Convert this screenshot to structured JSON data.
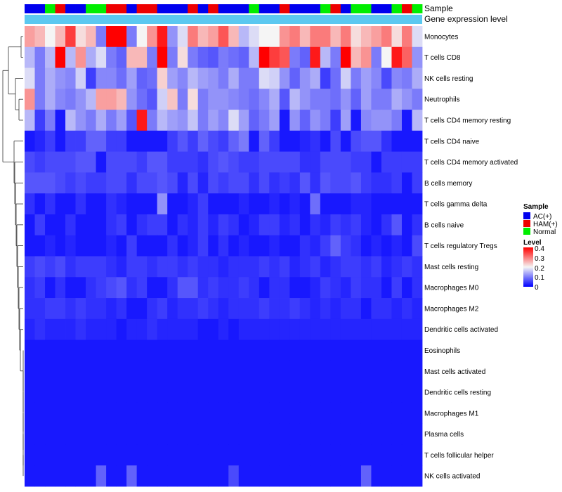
{
  "chart_data": {
    "type": "heatmap",
    "row_labels": [
      "Monocytes",
      "T cells CD8",
      "NK cells resting",
      "Neutrophils",
      "T cells CD4 memory resting",
      "T cells CD4 naive",
      "T cells CD4 memory activated",
      "B cells memory",
      "T cells gamma delta",
      "B cells naive",
      "T cells regulatory  Tregs",
      "Mast cells resting",
      "Macrophages M0",
      "Macrophages M2",
      "Dendritic cells activated",
      "Eosinophils",
      "Mast cells activated",
      "Dendritic cells resting",
      "Macrophages M1",
      "Plasma cells",
      "T cells follicular helper",
      "NK cells activated"
    ],
    "annotation_tracks": [
      {
        "name": "Sample",
        "values": [
          "AC(+)",
          "AC(+)",
          "Normal",
          "HAM(+)",
          "AC(+)",
          "AC(+)",
          "Normal",
          "Normal",
          "HAM(+)",
          "HAM(+)",
          "AC(+)",
          "HAM(+)",
          "HAM(+)",
          "AC(+)",
          "AC(+)",
          "AC(+)",
          "HAM(+)",
          "AC(+)",
          "HAM(+)",
          "AC(+)",
          "AC(+)",
          "AC(+)",
          "Normal",
          "AC(+)",
          "AC(+)",
          "HAM(+)",
          "AC(+)",
          "AC(+)",
          "AC(+)",
          "Normal",
          "HAM(+)",
          "AC(+)",
          "Normal",
          "Normal",
          "AC(+)",
          "AC(+)",
          "Normal",
          "HAM(+)",
          "Normal"
        ]
      },
      {
        "name": "Gene expression level",
        "color": "#5BC8F0"
      }
    ],
    "values": [
      [
        0.27,
        0.25,
        0.2,
        0.25,
        0.35,
        0.22,
        0.25,
        0.1,
        0.4,
        0.4,
        0.1,
        0.2,
        0.28,
        0.38,
        0.12,
        0.18,
        0.3,
        0.25,
        0.27,
        0.33,
        0.25,
        0.15,
        0.18,
        0.2,
        0.2,
        0.28,
        0.3,
        0.25,
        0.3,
        0.3,
        0.25,
        0.3,
        0.22,
        0.25,
        0.27,
        0.3,
        0.22,
        0.3,
        0.18
      ],
      [
        0.15,
        0.1,
        0.15,
        0.4,
        0.15,
        0.28,
        0.14,
        0.18,
        0.1,
        0.08,
        0.25,
        0.25,
        0.1,
        0.4,
        0.1,
        0.22,
        0.1,
        0.08,
        0.07,
        0.1,
        0.09,
        0.08,
        0.15,
        0.4,
        0.35,
        0.33,
        0.1,
        0.08,
        0.38,
        0.15,
        0.1,
        0.4,
        0.25,
        0.28,
        0.1,
        0.2,
        0.38,
        0.32,
        0.12
      ],
      [
        0.18,
        0.1,
        0.14,
        0.12,
        0.11,
        0.17,
        0.05,
        0.11,
        0.11,
        0.09,
        0.13,
        0.08,
        0.09,
        0.23,
        0.13,
        0.11,
        0.15,
        0.13,
        0.12,
        0.1,
        0.14,
        0.1,
        0.1,
        0.18,
        0.17,
        0.12,
        0.08,
        0.12,
        0.14,
        0.05,
        0.09,
        0.17,
        0.1,
        0.13,
        0.11,
        0.06,
        0.11,
        0.1,
        0.14
      ],
      [
        0.28,
        0.1,
        0.14,
        0.11,
        0.1,
        0.12,
        0.15,
        0.27,
        0.27,
        0.25,
        0.12,
        0.09,
        0.07,
        0.17,
        0.24,
        0.1,
        0.22,
        0.1,
        0.12,
        0.12,
        0.11,
        0.1,
        0.09,
        0.11,
        0.14,
        0.07,
        0.15,
        0.12,
        0.1,
        0.1,
        0.09,
        0.12,
        0.08,
        0.13,
        0.1,
        0.1,
        0.14,
        0.12,
        0.1
      ],
      [
        0.15,
        0.05,
        0.1,
        0.02,
        0.15,
        0.12,
        0.1,
        0.14,
        0.1,
        0.13,
        0.07,
        0.38,
        0.1,
        0.15,
        0.13,
        0.12,
        0.16,
        0.1,
        0.13,
        0.11,
        0.18,
        0.13,
        0.08,
        0.1,
        0.13,
        0.02,
        0.12,
        0.08,
        0.12,
        0.1,
        0.05,
        0.13,
        0.02,
        0.11,
        0.12,
        0.12,
        0.1,
        0.02,
        0.15
      ],
      [
        0.02,
        0.03,
        0.05,
        0.02,
        0.05,
        0.05,
        0.08,
        0.08,
        0.05,
        0.05,
        0.02,
        0.02,
        0.02,
        0.02,
        0.05,
        0.07,
        0.05,
        0.08,
        0.06,
        0.05,
        0.08,
        0.1,
        0.02,
        0.08,
        0.05,
        0.02,
        0.02,
        0.03,
        0.04,
        0.02,
        0.06,
        0.02,
        0.06,
        0.07,
        0.07,
        0.04,
        0.02,
        0.02,
        0.02
      ],
      [
        0.06,
        0.05,
        0.06,
        0.06,
        0.06,
        0.07,
        0.07,
        0.02,
        0.06,
        0.06,
        0.06,
        0.05,
        0.07,
        0.07,
        0.05,
        0.05,
        0.05,
        0.04,
        0.06,
        0.07,
        0.06,
        0.05,
        0.05,
        0.06,
        0.06,
        0.06,
        0.06,
        0.04,
        0.04,
        0.06,
        0.06,
        0.06,
        0.05,
        0.05,
        0.02,
        0.05,
        0.05,
        0.05,
        0.05
      ],
      [
        0.07,
        0.07,
        0.07,
        0.06,
        0.05,
        0.06,
        0.05,
        0.05,
        0.06,
        0.06,
        0.04,
        0.06,
        0.06,
        0.07,
        0.06,
        0.03,
        0.06,
        0.03,
        0.06,
        0.05,
        0.06,
        0.06,
        0.04,
        0.06,
        0.04,
        0.05,
        0.04,
        0.07,
        0.04,
        0.07,
        0.06,
        0.06,
        0.07,
        0.05,
        0.04,
        0.04,
        0.05,
        0.02,
        0.05
      ],
      [
        0.04,
        0.02,
        0.04,
        0.02,
        0.02,
        0.04,
        0.02,
        0.02,
        0.04,
        0.03,
        0.02,
        0.02,
        0.02,
        0.12,
        0.02,
        0.02,
        0.03,
        0.05,
        0.02,
        0.02,
        0.02,
        0.03,
        0.02,
        0.02,
        0.03,
        0.02,
        0.03,
        0.02,
        0.09,
        0.02,
        0.02,
        0.02,
        0.03,
        0.03,
        0.02,
        0.02,
        0.02,
        0.02,
        0.02
      ],
      [
        0.02,
        0.05,
        0.02,
        0.02,
        0.04,
        0.02,
        0.02,
        0.02,
        0.04,
        0.05,
        0.02,
        0.04,
        0.05,
        0.05,
        0.02,
        0.04,
        0.03,
        0.05,
        0.03,
        0.05,
        0.04,
        0.02,
        0.03,
        0.05,
        0.05,
        0.03,
        0.04,
        0.02,
        0.04,
        0.03,
        0.05,
        0.04,
        0.05,
        0.03,
        0.02,
        0.04,
        0.07,
        0.02,
        0.04
      ],
      [
        0.02,
        0.02,
        0.03,
        0.02,
        0.03,
        0.02,
        0.02,
        0.02,
        0.03,
        0.02,
        0.05,
        0.02,
        0.02,
        0.02,
        0.04,
        0.02,
        0.03,
        0.05,
        0.02,
        0.04,
        0.02,
        0.03,
        0.02,
        0.02,
        0.03,
        0.02,
        0.02,
        0.04,
        0.03,
        0.05,
        0.08,
        0.05,
        0.04,
        0.02,
        0.03,
        0.02,
        0.03,
        0.02,
        0.06
      ],
      [
        0.05,
        0.06,
        0.05,
        0.06,
        0.04,
        0.05,
        0.05,
        0.05,
        0.04,
        0.03,
        0.05,
        0.05,
        0.04,
        0.05,
        0.05,
        0.04,
        0.05,
        0.04,
        0.04,
        0.03,
        0.04,
        0.04,
        0.04,
        0.05,
        0.04,
        0.05,
        0.03,
        0.04,
        0.05,
        0.03,
        0.04,
        0.05,
        0.05,
        0.04,
        0.05,
        0.03,
        0.04,
        0.05,
        0.04
      ],
      [
        0.04,
        0.05,
        0.02,
        0.04,
        0.02,
        0.02,
        0.04,
        0.05,
        0.06,
        0.07,
        0.04,
        0.05,
        0.02,
        0.02,
        0.04,
        0.07,
        0.07,
        0.04,
        0.05,
        0.04,
        0.04,
        0.05,
        0.04,
        0.02,
        0.04,
        0.04,
        0.02,
        0.02,
        0.03,
        0.05,
        0.04,
        0.03,
        0.05,
        0.04,
        0.04,
        0.02,
        0.05,
        0.02,
        0.04
      ],
      [
        0.04,
        0.04,
        0.05,
        0.05,
        0.04,
        0.05,
        0.04,
        0.04,
        0.03,
        0.04,
        0.02,
        0.02,
        0.04,
        0.05,
        0.03,
        0.04,
        0.04,
        0.05,
        0.04,
        0.03,
        0.04,
        0.04,
        0.04,
        0.05,
        0.04,
        0.04,
        0.05,
        0.04,
        0.03,
        0.04,
        0.03,
        0.04,
        0.04,
        0.02,
        0.04,
        0.04,
        0.03,
        0.04,
        0.03
      ],
      [
        0.03,
        0.04,
        0.03,
        0.03,
        0.03,
        0.04,
        0.03,
        0.03,
        0.03,
        0.02,
        0.03,
        0.03,
        0.04,
        0.03,
        0.03,
        0.03,
        0.03,
        0.02,
        0.02,
        0.03,
        0.02,
        0.03,
        0.03,
        0.03,
        0.03,
        0.03,
        0.03,
        0.03,
        0.03,
        0.03,
        0.03,
        0.03,
        0.03,
        0.03,
        0.03,
        0.03,
        0.03,
        0.03,
        0.03
      ],
      [
        0.02,
        0.02,
        0.02,
        0.02,
        0.02,
        0.02,
        0.02,
        0.02,
        0.02,
        0.02,
        0.02,
        0.02,
        0.02,
        0.02,
        0.02,
        0.02,
        0.02,
        0.02,
        0.02,
        0.02,
        0.02,
        0.02,
        0.02,
        0.02,
        0.02,
        0.02,
        0.02,
        0.02,
        0.02,
        0.02,
        0.02,
        0.02,
        0.02,
        0.02,
        0.02,
        0.02,
        0.02,
        0.02,
        0.02
      ],
      [
        0.02,
        0.02,
        0.02,
        0.02,
        0.02,
        0.02,
        0.02,
        0.02,
        0.02,
        0.02,
        0.02,
        0.02,
        0.02,
        0.02,
        0.02,
        0.02,
        0.02,
        0.02,
        0.02,
        0.02,
        0.02,
        0.02,
        0.02,
        0.02,
        0.02,
        0.02,
        0.02,
        0.02,
        0.02,
        0.02,
        0.02,
        0.02,
        0.02,
        0.02,
        0.02,
        0.02,
        0.02,
        0.02,
        0.02
      ],
      [
        0.02,
        0.02,
        0.02,
        0.02,
        0.02,
        0.02,
        0.02,
        0.02,
        0.02,
        0.02,
        0.02,
        0.02,
        0.02,
        0.02,
        0.02,
        0.02,
        0.02,
        0.02,
        0.02,
        0.02,
        0.02,
        0.02,
        0.02,
        0.02,
        0.02,
        0.02,
        0.02,
        0.02,
        0.02,
        0.02,
        0.02,
        0.02,
        0.02,
        0.02,
        0.02,
        0.02,
        0.02,
        0.02,
        0.02
      ],
      [
        0.02,
        0.02,
        0.02,
        0.02,
        0.02,
        0.02,
        0.02,
        0.02,
        0.02,
        0.02,
        0.02,
        0.02,
        0.02,
        0.02,
        0.02,
        0.02,
        0.02,
        0.02,
        0.02,
        0.02,
        0.02,
        0.02,
        0.02,
        0.02,
        0.02,
        0.02,
        0.02,
        0.02,
        0.02,
        0.02,
        0.02,
        0.02,
        0.02,
        0.02,
        0.02,
        0.02,
        0.02,
        0.02,
        0.02
      ],
      [
        0.02,
        0.02,
        0.02,
        0.02,
        0.02,
        0.02,
        0.02,
        0.02,
        0.02,
        0.02,
        0.02,
        0.02,
        0.02,
        0.02,
        0.02,
        0.02,
        0.02,
        0.02,
        0.02,
        0.02,
        0.02,
        0.02,
        0.02,
        0.02,
        0.02,
        0.02,
        0.02,
        0.02,
        0.02,
        0.02,
        0.02,
        0.02,
        0.02,
        0.02,
        0.02,
        0.02,
        0.02,
        0.02,
        0.02
      ],
      [
        0.02,
        0.02,
        0.02,
        0.02,
        0.02,
        0.02,
        0.02,
        0.02,
        0.02,
        0.02,
        0.02,
        0.02,
        0.02,
        0.02,
        0.02,
        0.02,
        0.02,
        0.02,
        0.02,
        0.02,
        0.02,
        0.02,
        0.02,
        0.02,
        0.02,
        0.02,
        0.02,
        0.02,
        0.02,
        0.02,
        0.02,
        0.02,
        0.02,
        0.02,
        0.02,
        0.02,
        0.02,
        0.02,
        0.02
      ],
      [
        0.02,
        0.02,
        0.02,
        0.02,
        0.02,
        0.02,
        0.02,
        0.08,
        0.02,
        0.02,
        0.08,
        0.02,
        0.02,
        0.02,
        0.02,
        0.02,
        0.02,
        0.02,
        0.02,
        0.02,
        0.06,
        0.02,
        0.02,
        0.02,
        0.02,
        0.02,
        0.02,
        0.02,
        0.02,
        0.02,
        0.02,
        0.02,
        0.02,
        0.08,
        0.02,
        0.02,
        0.02,
        0.02,
        0.02
      ]
    ],
    "legend_sample": {
      "title": "Sample",
      "entries": [
        {
          "label": "AC(+)",
          "color": "#0000EE"
        },
        {
          "label": "HAM(+)",
          "color": "#EE0000"
        },
        {
          "label": "Normal",
          "color": "#00EE00"
        }
      ]
    },
    "legend_level": {
      "title": "Level",
      "ticks": [
        "0.4",
        "0.3",
        "0.2",
        "0.1",
        "0"
      ],
      "range": [
        0,
        0.4
      ],
      "colors": {
        "low": "#0000FF",
        "mid": "#F5F5F5",
        "high": "#FF0000"
      }
    }
  }
}
